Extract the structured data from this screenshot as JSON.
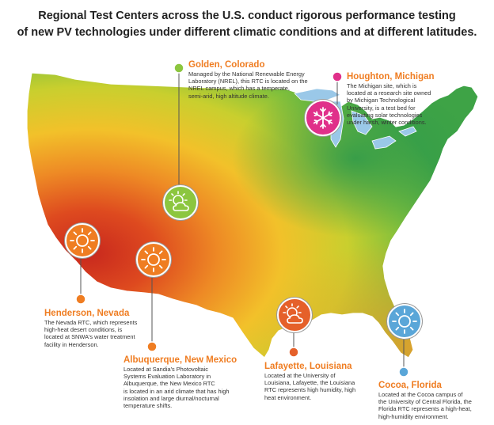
{
  "title": {
    "line1": "Regional Test Centers across the U.S. conduct rigorous performance testing",
    "line2": "of new PV technologies under different climatic conditions and at different latitudes."
  },
  "colors": {
    "orange": "#ef7d22",
    "green": "#8cc63f",
    "magenta": "#e0308a",
    "blue": "#5aa6d8",
    "dark_orange": "#e5602a"
  },
  "centers": [
    {
      "id": "golden",
      "name": "Golden, Colorado",
      "lines": [
        "Managed by the National Renewable Energy",
        "Laboratory (NREL), this RTC is located on the",
        "NREL campus, which has a temperate,",
        "semi-arid, high altitude climate."
      ],
      "icon": "sun-cloud-icon",
      "color": "#8cc63f"
    },
    {
      "id": "houghton",
      "name": "Houghton, Michigan",
      "lines": [
        "The Michigan site, which is",
        "located at a research site owned",
        "by Michigan Technological",
        "University, is a test bed for",
        "evaluating solar technologies",
        "under harsh, winter conditions."
      ],
      "icon": "snowflake-icon",
      "color": "#e0308a"
    },
    {
      "id": "henderson",
      "name": "Henderson, Nevada",
      "lines": [
        "The Nevada RTC, which represents",
        "high-heat desert conditions, is",
        "located at SNWA's water treatment",
        "facility in Henderson."
      ],
      "icon": "sun-icon",
      "color": "#ef7d22"
    },
    {
      "id": "albuquerque",
      "name": "Albuquerque, New Mexico",
      "lines": [
        "Located at Sandia's Photovoltaic",
        "Systems Evaluation Laboratory in",
        "Albuquerque, the New Mexico RTC",
        "is located in an arid climate that has high",
        "insolation and large diurnal/nocturnal",
        "temperature shifts."
      ],
      "icon": "sun-icon",
      "color": "#ef7d22"
    },
    {
      "id": "lafayette",
      "name": "Lafayette, Louisiana",
      "lines": [
        "Located at the University of",
        "Louisiana, Lafayette, the Louisiana",
        "RTC represents high humidity, high",
        "heat environment."
      ],
      "icon": "sun-cloud-icon",
      "color": "#e5602a"
    },
    {
      "id": "cocoa",
      "name": "Cocoa, Florida",
      "lines": [
        "Located at the Cocoa campus of",
        "the University of Central Florida, the",
        "Florida RTC represents a high-heat,",
        "high-humidity environment."
      ],
      "icon": "sun-icon",
      "color": "#5aa6d8"
    }
  ]
}
